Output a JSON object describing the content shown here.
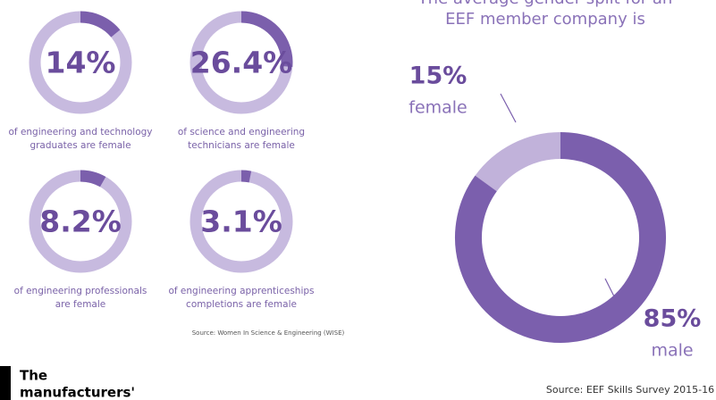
{
  "chart_data": [
    {
      "type": "donut",
      "values": [
        14
      ],
      "value_labels": [
        "14%"
      ],
      "color": "#7b5fac",
      "track_color": "#c7badf",
      "caption": [
        "of engineering and technology",
        "graduates are female"
      ]
    },
    {
      "type": "donut",
      "values": [
        26.4
      ],
      "value_labels": [
        "26.4%"
      ],
      "color": "#7b5fac",
      "track_color": "#c7badf",
      "caption": [
        "of science and engineering",
        "technicians are female"
      ]
    },
    {
      "type": "donut",
      "values": [
        8.2
      ],
      "value_labels": [
        "8.2%"
      ],
      "color": "#7b5fac",
      "track_color": "#c7badf",
      "caption": [
        "of engineering professionals",
        "are female"
      ]
    },
    {
      "type": "donut",
      "values": [
        3.1
      ],
      "value_labels": [
        "3.1%"
      ],
      "color": "#7b5fac",
      "track_color": "#c7badf",
      "caption": [
        "of engineering apprenticeships",
        "completions are female"
      ]
    },
    {
      "type": "pie",
      "title": [
        "The average gender split for an",
        "EEF member company is"
      ],
      "categories": [
        "female",
        "male"
      ],
      "values": [
        15,
        85
      ],
      "value_labels": [
        "15%",
        "85%"
      ],
      "colors": [
        "#c1b2da",
        "#7b5fad"
      ]
    }
  ],
  "source_left": "Source: Women In Science & Engineering (WISE)",
  "source_right": "Source: EEF Skills Survey 2015-16",
  "logo": [
    "The",
    "manufacturers'"
  ]
}
